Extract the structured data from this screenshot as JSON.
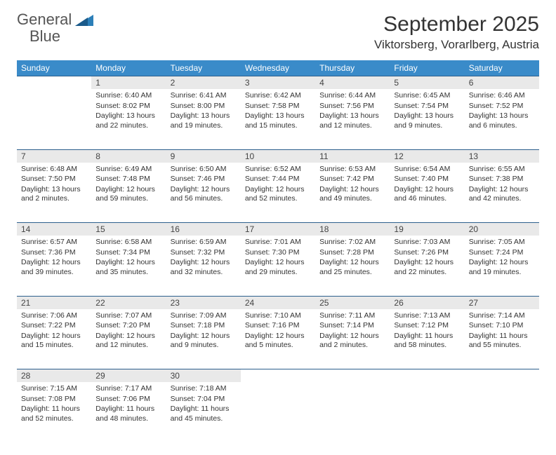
{
  "logo": {
    "word1": "General",
    "word2": "Blue"
  },
  "title": "September 2025",
  "location": "Viktorsberg, Vorarlberg, Austria",
  "colors": {
    "header_bg": "#3a8bc9",
    "header_text": "#ffffff",
    "daynum_bg": "#e9e9e9",
    "border": "#2c5f8d",
    "logo_accent": "#2c7fb8",
    "text": "#333333",
    "background": "#ffffff"
  },
  "day_headers": [
    "Sunday",
    "Monday",
    "Tuesday",
    "Wednesday",
    "Thursday",
    "Friday",
    "Saturday"
  ],
  "weeks": [
    [
      {
        "num": "",
        "sunrise": "",
        "sunset": "",
        "daylight": ""
      },
      {
        "num": "1",
        "sunrise": "Sunrise: 6:40 AM",
        "sunset": "Sunset: 8:02 PM",
        "daylight": "Daylight: 13 hours and 22 minutes."
      },
      {
        "num": "2",
        "sunrise": "Sunrise: 6:41 AM",
        "sunset": "Sunset: 8:00 PM",
        "daylight": "Daylight: 13 hours and 19 minutes."
      },
      {
        "num": "3",
        "sunrise": "Sunrise: 6:42 AM",
        "sunset": "Sunset: 7:58 PM",
        "daylight": "Daylight: 13 hours and 15 minutes."
      },
      {
        "num": "4",
        "sunrise": "Sunrise: 6:44 AM",
        "sunset": "Sunset: 7:56 PM",
        "daylight": "Daylight: 13 hours and 12 minutes."
      },
      {
        "num": "5",
        "sunrise": "Sunrise: 6:45 AM",
        "sunset": "Sunset: 7:54 PM",
        "daylight": "Daylight: 13 hours and 9 minutes."
      },
      {
        "num": "6",
        "sunrise": "Sunrise: 6:46 AM",
        "sunset": "Sunset: 7:52 PM",
        "daylight": "Daylight: 13 hours and 6 minutes."
      }
    ],
    [
      {
        "num": "7",
        "sunrise": "Sunrise: 6:48 AM",
        "sunset": "Sunset: 7:50 PM",
        "daylight": "Daylight: 13 hours and 2 minutes."
      },
      {
        "num": "8",
        "sunrise": "Sunrise: 6:49 AM",
        "sunset": "Sunset: 7:48 PM",
        "daylight": "Daylight: 12 hours and 59 minutes."
      },
      {
        "num": "9",
        "sunrise": "Sunrise: 6:50 AM",
        "sunset": "Sunset: 7:46 PM",
        "daylight": "Daylight: 12 hours and 56 minutes."
      },
      {
        "num": "10",
        "sunrise": "Sunrise: 6:52 AM",
        "sunset": "Sunset: 7:44 PM",
        "daylight": "Daylight: 12 hours and 52 minutes."
      },
      {
        "num": "11",
        "sunrise": "Sunrise: 6:53 AM",
        "sunset": "Sunset: 7:42 PM",
        "daylight": "Daylight: 12 hours and 49 minutes."
      },
      {
        "num": "12",
        "sunrise": "Sunrise: 6:54 AM",
        "sunset": "Sunset: 7:40 PM",
        "daylight": "Daylight: 12 hours and 46 minutes."
      },
      {
        "num": "13",
        "sunrise": "Sunrise: 6:55 AM",
        "sunset": "Sunset: 7:38 PM",
        "daylight": "Daylight: 12 hours and 42 minutes."
      }
    ],
    [
      {
        "num": "14",
        "sunrise": "Sunrise: 6:57 AM",
        "sunset": "Sunset: 7:36 PM",
        "daylight": "Daylight: 12 hours and 39 minutes."
      },
      {
        "num": "15",
        "sunrise": "Sunrise: 6:58 AM",
        "sunset": "Sunset: 7:34 PM",
        "daylight": "Daylight: 12 hours and 35 minutes."
      },
      {
        "num": "16",
        "sunrise": "Sunrise: 6:59 AM",
        "sunset": "Sunset: 7:32 PM",
        "daylight": "Daylight: 12 hours and 32 minutes."
      },
      {
        "num": "17",
        "sunrise": "Sunrise: 7:01 AM",
        "sunset": "Sunset: 7:30 PM",
        "daylight": "Daylight: 12 hours and 29 minutes."
      },
      {
        "num": "18",
        "sunrise": "Sunrise: 7:02 AM",
        "sunset": "Sunset: 7:28 PM",
        "daylight": "Daylight: 12 hours and 25 minutes."
      },
      {
        "num": "19",
        "sunrise": "Sunrise: 7:03 AM",
        "sunset": "Sunset: 7:26 PM",
        "daylight": "Daylight: 12 hours and 22 minutes."
      },
      {
        "num": "20",
        "sunrise": "Sunrise: 7:05 AM",
        "sunset": "Sunset: 7:24 PM",
        "daylight": "Daylight: 12 hours and 19 minutes."
      }
    ],
    [
      {
        "num": "21",
        "sunrise": "Sunrise: 7:06 AM",
        "sunset": "Sunset: 7:22 PM",
        "daylight": "Daylight: 12 hours and 15 minutes."
      },
      {
        "num": "22",
        "sunrise": "Sunrise: 7:07 AM",
        "sunset": "Sunset: 7:20 PM",
        "daylight": "Daylight: 12 hours and 12 minutes."
      },
      {
        "num": "23",
        "sunrise": "Sunrise: 7:09 AM",
        "sunset": "Sunset: 7:18 PM",
        "daylight": "Daylight: 12 hours and 9 minutes."
      },
      {
        "num": "24",
        "sunrise": "Sunrise: 7:10 AM",
        "sunset": "Sunset: 7:16 PM",
        "daylight": "Daylight: 12 hours and 5 minutes."
      },
      {
        "num": "25",
        "sunrise": "Sunrise: 7:11 AM",
        "sunset": "Sunset: 7:14 PM",
        "daylight": "Daylight: 12 hours and 2 minutes."
      },
      {
        "num": "26",
        "sunrise": "Sunrise: 7:13 AM",
        "sunset": "Sunset: 7:12 PM",
        "daylight": "Daylight: 11 hours and 58 minutes."
      },
      {
        "num": "27",
        "sunrise": "Sunrise: 7:14 AM",
        "sunset": "Sunset: 7:10 PM",
        "daylight": "Daylight: 11 hours and 55 minutes."
      }
    ],
    [
      {
        "num": "28",
        "sunrise": "Sunrise: 7:15 AM",
        "sunset": "Sunset: 7:08 PM",
        "daylight": "Daylight: 11 hours and 52 minutes."
      },
      {
        "num": "29",
        "sunrise": "Sunrise: 7:17 AM",
        "sunset": "Sunset: 7:06 PM",
        "daylight": "Daylight: 11 hours and 48 minutes."
      },
      {
        "num": "30",
        "sunrise": "Sunrise: 7:18 AM",
        "sunset": "Sunset: 7:04 PM",
        "daylight": "Daylight: 11 hours and 45 minutes."
      },
      {
        "num": "",
        "sunrise": "",
        "sunset": "",
        "daylight": ""
      },
      {
        "num": "",
        "sunrise": "",
        "sunset": "",
        "daylight": ""
      },
      {
        "num": "",
        "sunrise": "",
        "sunset": "",
        "daylight": ""
      },
      {
        "num": "",
        "sunrise": "",
        "sunset": "",
        "daylight": ""
      }
    ]
  ]
}
